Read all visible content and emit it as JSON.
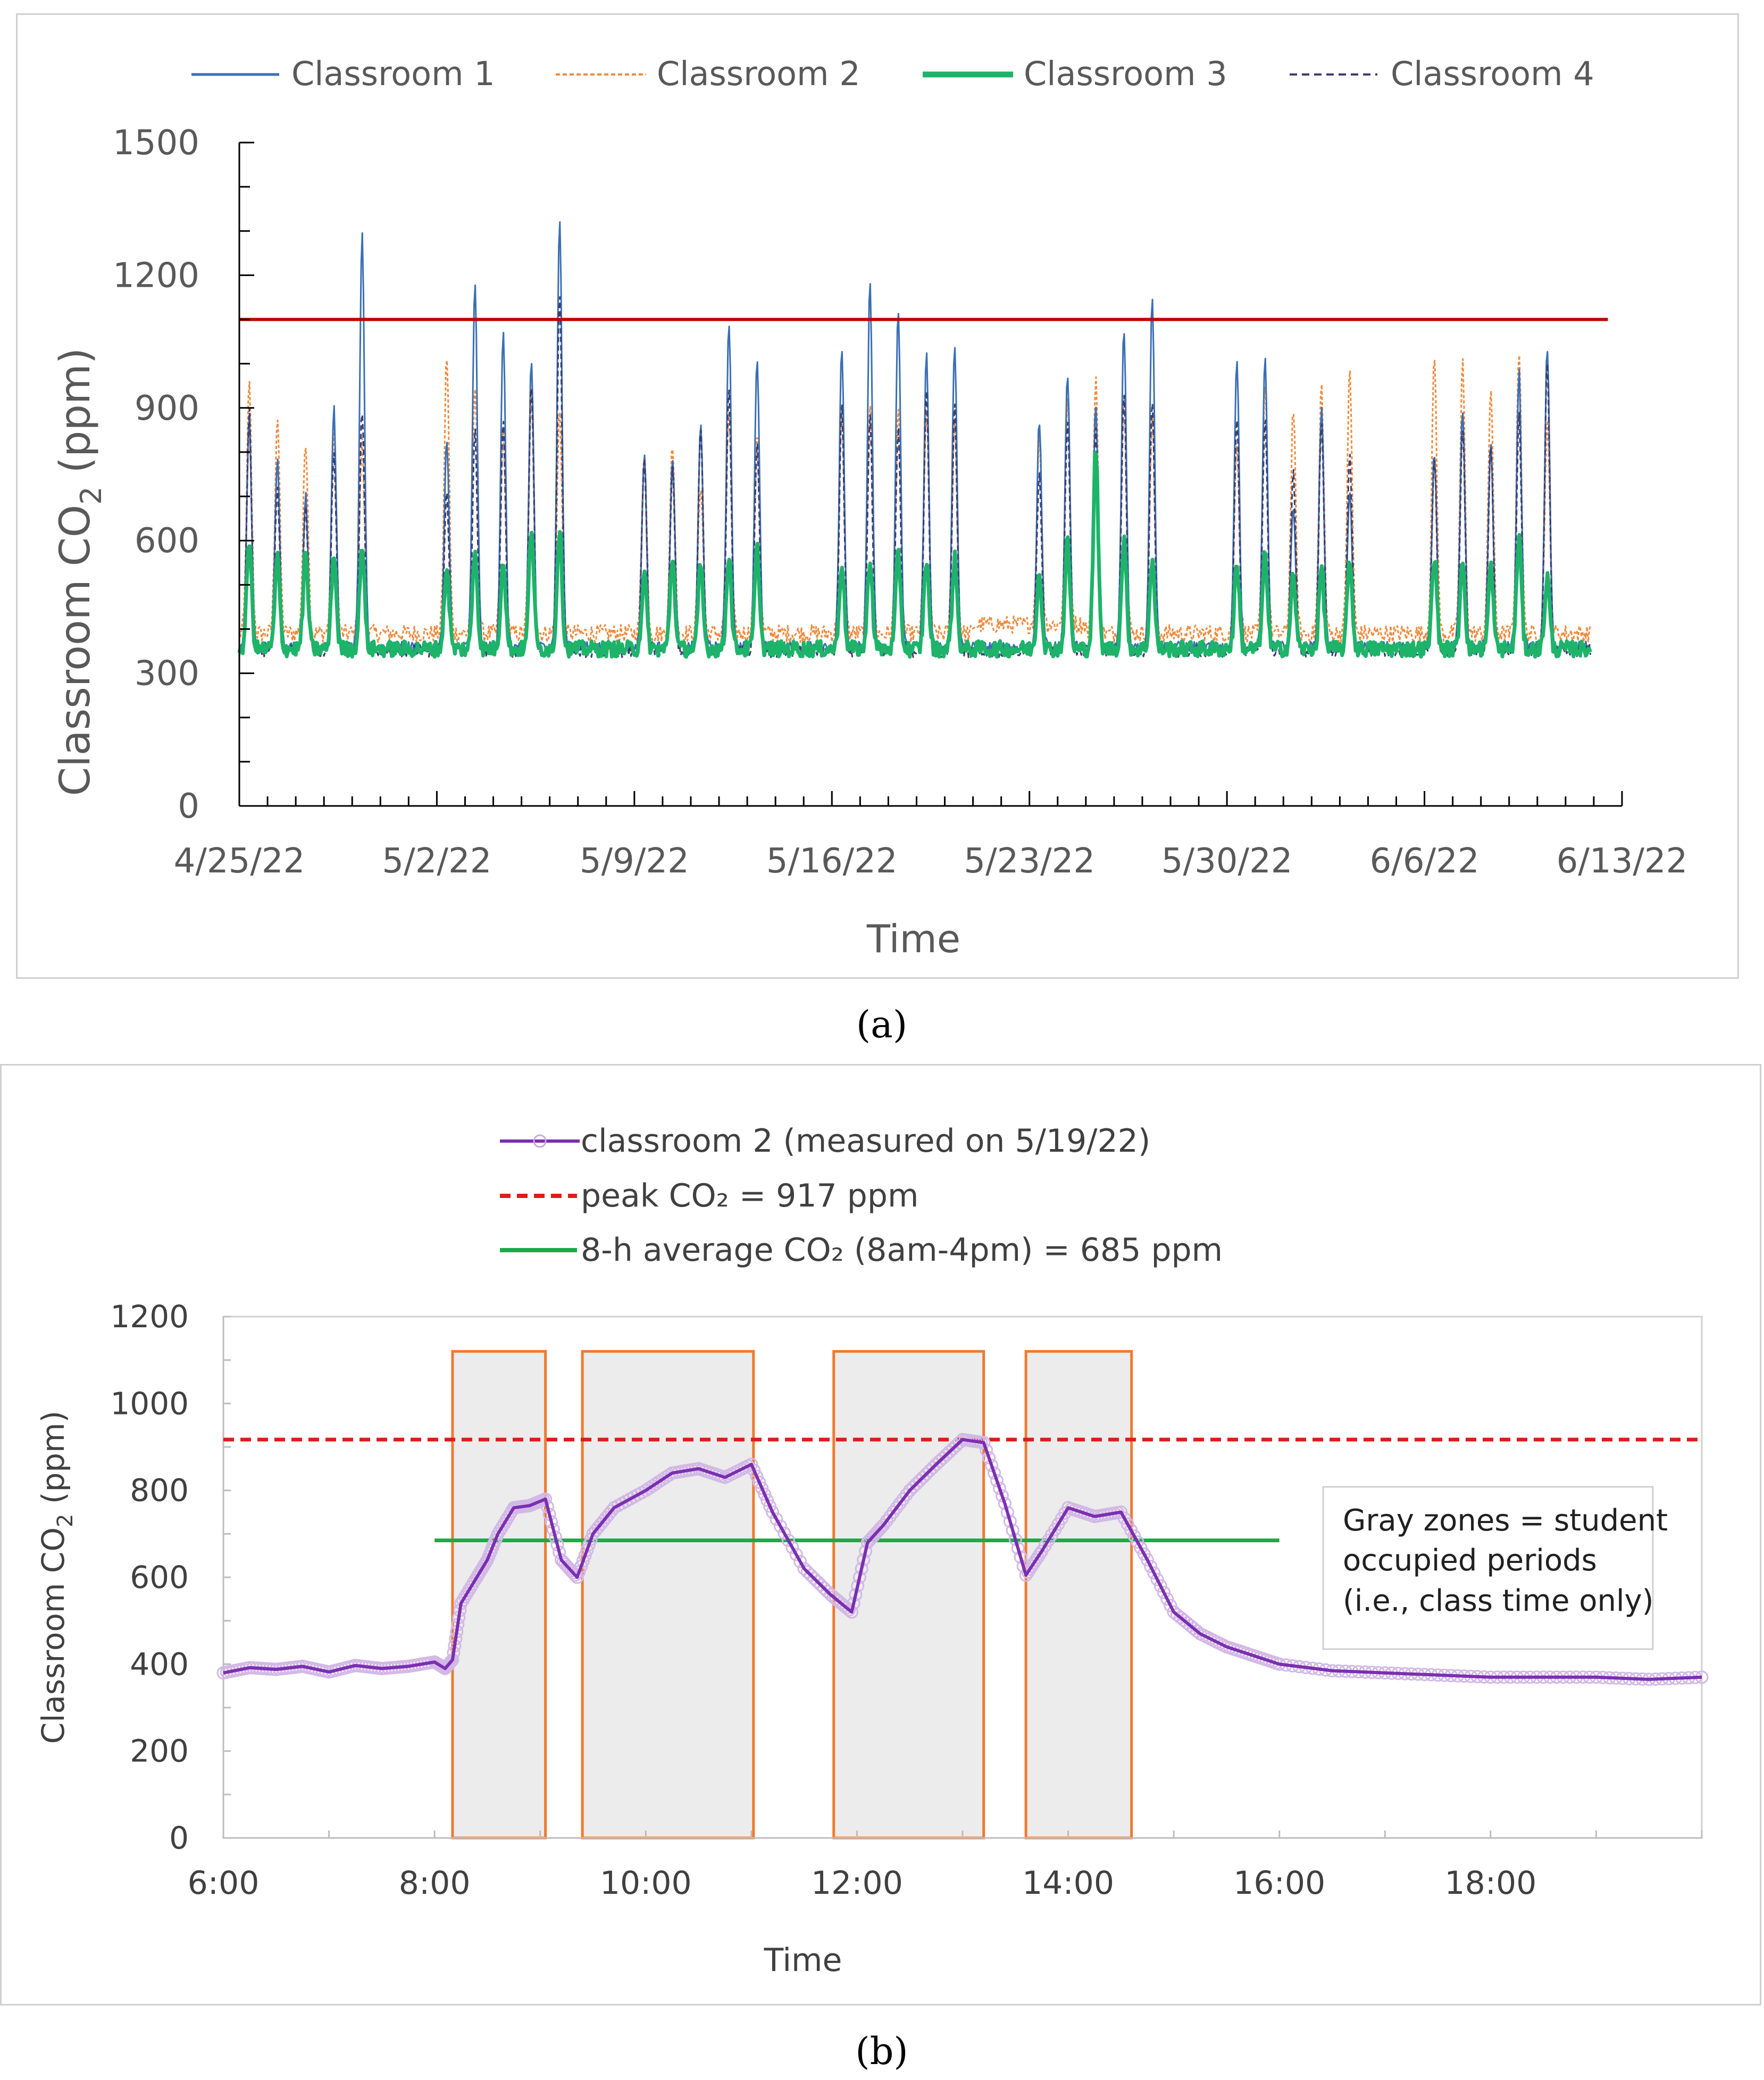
{
  "chart_data": [
    {
      "type": "line",
      "panel_label": "(a)",
      "xlabel": "Time",
      "ylabel": "Classroom CO",
      "ylabel_sub": "2",
      "ylabel_unit": " (ppm)",
      "ylim": [
        0,
        1500
      ],
      "yticks": [
        "0",
        "300",
        "600",
        "900",
        "1200",
        "1500"
      ],
      "xticks": [
        "4/25/22",
        "5/2/22",
        "5/9/22",
        "5/16/22",
        "5/23/22",
        "5/30/22",
        "6/6/22",
        "6/13/22"
      ],
      "x_days_range": [
        0,
        49
      ],
      "reference_line_ppm": 1100,
      "legend": [
        "Classroom 1",
        "Classroom 2",
        "Classroom 3",
        "Classroom 4"
      ],
      "series_colors": [
        "#3a6fb5",
        "#f08a3c",
        "#1db46a",
        "#3b3e6e"
      ],
      "school_day_offsets": [
        0.5,
        1.5,
        2.5,
        3.5,
        4.5,
        7.5,
        8.5,
        9.5,
        10.5,
        11.5,
        14.5,
        15.5,
        16.5,
        17.5,
        18.5,
        21.5,
        22.5,
        23.5,
        24.5,
        25.5,
        28.5,
        29.5,
        30.5,
        31.5,
        32.5,
        35.5,
        36.5,
        37.5,
        38.5,
        39.5,
        42.5,
        43.5,
        44.5,
        45.5,
        46.5
      ],
      "daily_peaks": {
        "Classroom 1": [
          870,
          780,
          700,
          900,
          1290,
          820,
          1190,
          1070,
          1010,
          1330,
          790,
          780,
          860,
          1100,
          1020,
          1030,
          1190,
          1130,
          1020,
          1040,
          870,
          980,
          900,
          1080,
          1160,
          1020,
          1010,
          680,
          900,
          700,
          800,
          900,
          820,
          980,
          1040
        ],
        "Classroom 2": [
          950,
          880,
          830,
          840,
          820,
          1020,
          950,
          860,
          930,
          900,
          810,
          820,
          730,
          900,
          840,
          880,
          920,
          900,
          900,
          870,
          820,
          900,
          970,
          950,
          880,
          830,
          960,
          900,
          950,
          980,
          1020,
          1000,
          950,
          1040,
          870
        ],
        "Classroom 3": [
          600,
          560,
          570,
          570,
          590,
          540,
          580,
          560,
          630,
          630,
          520,
          560,
          540,
          570,
          580,
          550,
          560,
          570,
          560,
          560,
          530,
          600,
          810,
          600,
          560,
          550,
          570,
          520,
          540,
          560,
          570,
          560,
          540,
          610,
          520
        ],
        "Classroom 4": [
          890,
          720,
          680,
          800,
          900,
          700,
          850,
          860,
          960,
          1170,
          780,
          760,
          860,
          950,
          820,
          900,
          880,
          850,
          930,
          900,
          760,
          880,
          850,
          940,
          920,
          880,
          880,
          750,
          880,
          800,
          780,
          850,
          820,
          880,
          1010
        ]
      },
      "baseline_ppm": [
        360,
        390,
        355,
        350
      ]
    },
    {
      "type": "line",
      "panel_label": "(b)",
      "xlabel": "Time",
      "ylabel": "Classroom CO",
      "ylabel_sub": "2",
      "ylabel_unit": " (ppm)",
      "ylim": [
        0,
        1200
      ],
      "yticks": [
        "0",
        "200",
        "400",
        "600",
        "800",
        "1000",
        "1200"
      ],
      "xticks": [
        "6:00",
        "8:00",
        "10:00",
        "12:00",
        "14:00",
        "16:00",
        "18:00"
      ],
      "x_hours_range": [
        6,
        20
      ],
      "legend": [
        {
          "label": "classroom 2  (measured on 5/19/22)",
          "color": "#7b2fb0",
          "style": "line-marker"
        },
        {
          "label": "peak CO₂ = 917 ppm",
          "color": "#e01b1b",
          "style": "dashed"
        },
        {
          "label": "8-h average CO₂ (8am-4pm) = 685 ppm",
          "color": "#1aaa48",
          "style": "solid"
        }
      ],
      "peak_ppm": 917,
      "average_ppm": 685,
      "average_range_hours": [
        8,
        16
      ],
      "occupied_periods_hours": [
        [
          8.17,
          9.05
        ],
        [
          9.4,
          11.02
        ],
        [
          11.78,
          13.2
        ],
        [
          13.6,
          14.6
        ]
      ],
      "annotation": [
        "Gray zones = student",
        "occupied periods",
        "(i.e., class time only)"
      ],
      "series": [
        {
          "name": "classroom 2",
          "x": [
            6.0,
            6.25,
            6.5,
            6.75,
            7.0,
            7.25,
            7.5,
            7.75,
            8.0,
            8.1,
            8.17,
            8.25,
            8.4,
            8.5,
            8.6,
            8.75,
            8.9,
            9.05,
            9.2,
            9.35,
            9.5,
            9.7,
            10.0,
            10.25,
            10.5,
            10.75,
            11.0,
            11.2,
            11.5,
            11.75,
            11.95,
            12.1,
            12.25,
            12.5,
            12.75,
            13.0,
            13.2,
            13.4,
            13.6,
            13.75,
            14.0,
            14.25,
            14.5,
            14.75,
            15.0,
            15.25,
            15.5,
            15.75,
            16.0,
            16.5,
            17.0,
            17.5,
            18.0,
            18.5,
            19.0,
            19.5,
            20.0
          ],
          "y": [
            380,
            392,
            388,
            395,
            382,
            397,
            390,
            395,
            405,
            390,
            410,
            540,
            600,
            640,
            700,
            760,
            765,
            780,
            640,
            600,
            700,
            760,
            800,
            840,
            850,
            830,
            860,
            750,
            620,
            560,
            520,
            680,
            720,
            800,
            860,
            917,
            910,
            770,
            605,
            660,
            760,
            740,
            750,
            640,
            520,
            470,
            440,
            420,
            400,
            385,
            380,
            375,
            370,
            370,
            370,
            365,
            370
          ]
        }
      ]
    }
  ]
}
